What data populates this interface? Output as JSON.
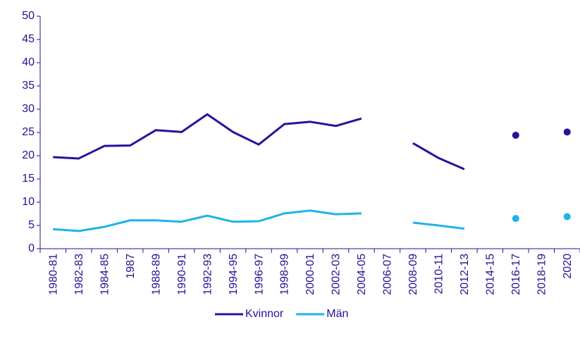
{
  "chart_data": {
    "type": "line",
    "categories": [
      "1980-81",
      "1982-83",
      "1984-85",
      "1987",
      "1988-89",
      "1990-91",
      "1992-93",
      "1994-95",
      "1996-97",
      "1998-99",
      "2000-01",
      "2002-03",
      "2004-05",
      "2006-07",
      "2008-09",
      "2010-11",
      "2012-13",
      "2014-15",
      "2016-17",
      "2018-19",
      "2020"
    ],
    "series": [
      {
        "name": "Kvinnor",
        "color": "#23149c",
        "values": [
          19.7,
          19.4,
          22.1,
          22.2,
          25.5,
          25.1,
          28.9,
          25.1,
          22.4,
          26.8,
          27.3,
          26.4,
          28.0,
          null,
          22.7,
          19.5,
          17.1,
          null,
          24.4,
          null,
          25.1
        ]
      },
      {
        "name": "Män",
        "color": "#1eb4e6",
        "values": [
          4.2,
          3.8,
          4.7,
          6.1,
          6.1,
          5.8,
          7.1,
          5.8,
          5.9,
          7.6,
          8.2,
          7.4,
          7.6,
          null,
          5.6,
          5.0,
          4.3,
          null,
          6.5,
          null,
          6.9
        ]
      }
    ],
    "ylim": [
      0,
      50
    ],
    "yticks": [
      0,
      5,
      10,
      15,
      20,
      25,
      30,
      35,
      40,
      45,
      50
    ],
    "grid": false,
    "legend": "bottom"
  }
}
